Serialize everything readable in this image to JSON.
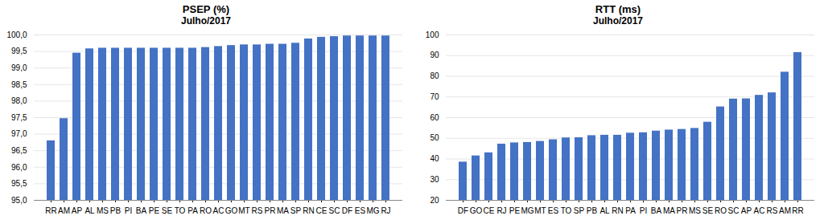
{
  "chart_data": [
    {
      "type": "bar",
      "title": "PSEP (%)",
      "subtitle": "Julho/2017",
      "categories": [
        "RR",
        "AM",
        "AP",
        "AL",
        "MS",
        "PB",
        "PI",
        "BA",
        "PE",
        "SE",
        "TO",
        "PA",
        "RO",
        "AC",
        "GO",
        "MT",
        "RS",
        "PR",
        "MA",
        "SP",
        "RN",
        "CE",
        "SC",
        "DF",
        "ES",
        "MG",
        "RJ"
      ],
      "values": [
        96.8,
        97.47,
        99.45,
        99.58,
        99.6,
        99.6,
        99.6,
        99.6,
        99.6,
        99.6,
        99.6,
        99.6,
        99.62,
        99.65,
        99.68,
        99.7,
        99.7,
        99.72,
        99.72,
        99.75,
        99.88,
        99.93,
        99.95,
        99.97,
        99.97,
        99.97,
        99.97
      ],
      "color": "#4472C4",
      "ylim": [
        95.0,
        100.0
      ],
      "yticks": [
        {
          "value": 95.0,
          "label": "95,0"
        },
        {
          "value": 95.5,
          "label": "95,5"
        },
        {
          "value": 96.0,
          "label": "96,0"
        },
        {
          "value": 96.5,
          "label": "96,5"
        },
        {
          "value": 97.0,
          "label": "97,0"
        },
        {
          "value": 97.5,
          "label": "97,5"
        },
        {
          "value": 98.0,
          "label": "98,0"
        },
        {
          "value": 98.5,
          "label": "98,5"
        },
        {
          "value": 99.0,
          "label": "99,0"
        },
        {
          "value": 99.5,
          "label": "99,5"
        },
        {
          "value": 100.0,
          "label": "100,0"
        }
      ],
      "grid": true
    },
    {
      "type": "bar",
      "title": "RTT (ms)",
      "subtitle": "Julho/2017",
      "categories": [
        "DF",
        "GO",
        "CE",
        "RJ",
        "PE",
        "MG",
        "MT",
        "ES",
        "TO",
        "SP",
        "PB",
        "AL",
        "RN",
        "PA",
        "PI",
        "BA",
        "MA",
        "PR",
        "MS",
        "SE",
        "RO",
        "SC",
        "AP",
        "AC",
        "RS",
        "AM",
        "RR"
      ],
      "values": [
        38.5,
        41.5,
        43.0,
        47.2,
        47.8,
        48.0,
        48.5,
        49.3,
        50.2,
        50.3,
        51.3,
        51.5,
        51.5,
        52.5,
        52.7,
        53.5,
        54.0,
        54.3,
        54.8,
        57.8,
        65.2,
        69.0,
        69.1,
        70.8,
        72.0,
        82.0,
        91.5
      ],
      "color": "#4472C4",
      "ylim": [
        20,
        100
      ],
      "yticks": [
        20,
        30,
        40,
        50,
        60,
        70,
        80,
        90,
        100
      ],
      "grid": true
    }
  ]
}
